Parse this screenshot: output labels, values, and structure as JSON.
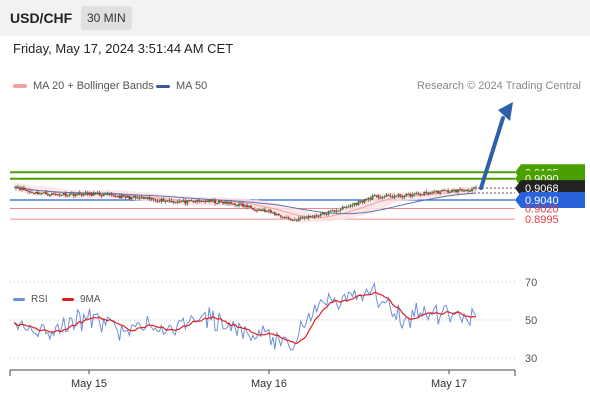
{
  "header": {
    "symbol": "USD/CHF",
    "timeframe": "30 MIN"
  },
  "datetime": "Friday, May 17, 2024 3:51:44 AM CET",
  "legend": {
    "ma20": {
      "label": "MA 20 + Bollinger Bands",
      "color": "#f08080"
    },
    "ma50": {
      "label": "MA 50",
      "color": "#3a5a9a"
    }
  },
  "credit": "Research © 2024 Trading Central",
  "rsi_legend": {
    "rsi": {
      "label": "RSI",
      "color": "#6f8fd8"
    },
    "ma9": {
      "label": "9MA",
      "color": "#e02020"
    }
  },
  "chart_data": [
    {
      "type": "candlestick",
      "series": [
        {
          "name": "MA 20 + Bollinger Bands",
          "color": "#f08080"
        },
        {
          "name": "MA 50",
          "color": "#3a5a9a"
        }
      ],
      "x_ticks": [
        "May 15",
        "May 16",
        "May 17"
      ],
      "last_price": 0.9068,
      "levels": [
        {
          "value": 0.9105,
          "label": "0.9105",
          "type": "target",
          "color": "#4aa000"
        },
        {
          "value": 0.909,
          "label": "0.9090",
          "type": "target",
          "color": "#4aa000"
        },
        {
          "value": 0.9068,
          "label": "0.9068",
          "type": "last",
          "color": "#222222"
        },
        {
          "value": 0.904,
          "label": "0.9040",
          "type": "pivot",
          "color": "#2962d9"
        },
        {
          "value": 0.902,
          "label": "0.9020",
          "type": "support",
          "color": "#e04040"
        },
        {
          "value": 0.8995,
          "label": "0.8995",
          "type": "support",
          "color": "#e04040"
        }
      ]
    },
    {
      "type": "line",
      "series": [
        {
          "name": "RSI",
          "color": "#6f8fd8"
        },
        {
          "name": "9MA",
          "color": "#e02020"
        }
      ],
      "y_ticks": [
        70,
        50,
        30
      ],
      "ylim": [
        15,
        85
      ]
    }
  ]
}
